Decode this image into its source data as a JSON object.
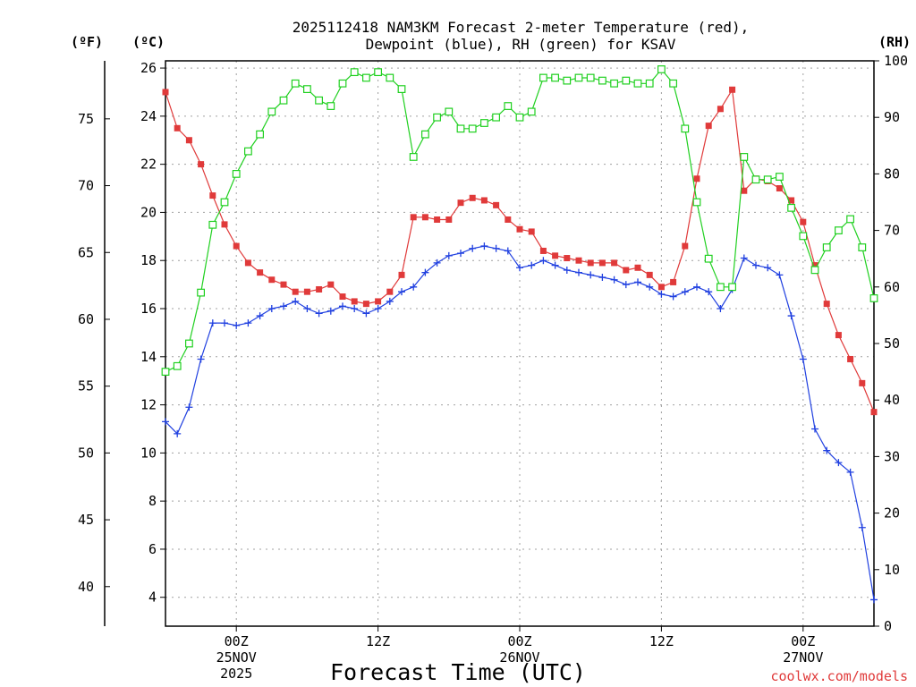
{
  "chart_data": {
    "type": "line",
    "title_lines": [
      "2025112418 NAM3KM Forecast 2-meter Temperature (red),",
      "Dewpoint (blue), RH (green) for KSAV"
    ],
    "xlabel": "Forecast Time (UTC)",
    "credit": "coolwx.com/models",
    "units": {
      "fahrenheit": "(ºF)",
      "celsius": "(ºC)",
      "rh": "(RH)"
    },
    "colors": {
      "temperature": "#e03a3a",
      "dewpoint": "#2040e0",
      "rh": "#20d020",
      "grid": "#a0a0a0"
    },
    "x_hours_range": [
      18,
      78
    ],
    "x_ticks": [
      {
        "hour": 24,
        "label": "00Z",
        "date": "25NOV",
        "year": "2025"
      },
      {
        "hour": 36,
        "label": "12Z",
        "date": "",
        "year": ""
      },
      {
        "hour": 48,
        "label": "00Z",
        "date": "26NOV",
        "year": ""
      },
      {
        "hour": 60,
        "label": "12Z",
        "date": "",
        "year": ""
      },
      {
        "hour": 72,
        "label": "00Z",
        "date": "27NOV",
        "year": ""
      }
    ],
    "y_celsius": {
      "range": [
        2.8,
        26.3
      ],
      "ticks": [
        4,
        6,
        8,
        10,
        12,
        14,
        16,
        18,
        20,
        22,
        24,
        26
      ]
    },
    "y_fahrenheit": {
      "ticks": [
        40,
        45,
        50,
        55,
        60,
        65,
        70,
        75
      ]
    },
    "y_rh": {
      "range": [
        0,
        100
      ],
      "ticks": [
        0,
        10,
        20,
        30,
        40,
        50,
        60,
        70,
        80,
        90,
        100
      ]
    },
    "hours": [
      18,
      19,
      20,
      21,
      22,
      23,
      24,
      25,
      26,
      27,
      28,
      29,
      30,
      31,
      32,
      33,
      34,
      35,
      36,
      37,
      38,
      39,
      40,
      41,
      42,
      43,
      44,
      45,
      46,
      47,
      48,
      49,
      50,
      51,
      52,
      53,
      54,
      55,
      56,
      57,
      58,
      59,
      60,
      61,
      62,
      63,
      64,
      65,
      66,
      67,
      68,
      69,
      70,
      71,
      72,
      73,
      74,
      75,
      76,
      77,
      78
    ],
    "series": [
      {
        "name": "Temperature (C)",
        "color": "temperature",
        "marker": "filled-square",
        "values": [
          25.0,
          23.5,
          23.0,
          22.0,
          20.7,
          19.5,
          18.6,
          17.9,
          17.5,
          17.2,
          17.0,
          16.7,
          16.7,
          16.8,
          17.0,
          16.5,
          16.3,
          16.2,
          16.3,
          16.7,
          17.4,
          19.8,
          19.8,
          19.7,
          19.7,
          20.4,
          20.6,
          20.5,
          20.3,
          19.7,
          19.3,
          19.2,
          18.4,
          18.2,
          18.1,
          18.0,
          17.9,
          17.9,
          17.9,
          17.6,
          17.7,
          17.4,
          16.9,
          17.1,
          18.6,
          21.4,
          23.6,
          24.3,
          25.1,
          20.9,
          21.4,
          21.3,
          21.0,
          20.5,
          19.6,
          17.8,
          16.2,
          14.9,
          13.9,
          12.9,
          11.7
        ]
      },
      {
        "name": "Dewpoint (C)",
        "color": "dewpoint",
        "marker": "plus",
        "values": [
          11.3,
          10.8,
          11.9,
          13.9,
          15.4,
          15.4,
          15.3,
          15.4,
          15.7,
          16.0,
          16.1,
          16.3,
          16.0,
          15.8,
          15.9,
          16.1,
          16.0,
          15.8,
          16.0,
          16.3,
          16.7,
          16.9,
          17.5,
          17.9,
          18.2,
          18.3,
          18.5,
          18.6,
          18.5,
          18.4,
          17.7,
          17.8,
          18.0,
          17.8,
          17.6,
          17.5,
          17.4,
          17.3,
          17.2,
          17.0,
          17.1,
          16.9,
          16.6,
          16.5,
          16.7,
          16.9,
          16.7,
          16.0,
          16.8,
          18.1,
          17.8,
          17.7,
          17.4,
          15.7,
          13.9,
          11.0,
          10.1,
          9.6,
          9.2,
          6.9,
          3.9
        ]
      },
      {
        "name": "RH (%)",
        "color": "rh",
        "marker": "open-square",
        "values": [
          45,
          46,
          50,
          59,
          71,
          75,
          80,
          84,
          87,
          91,
          93,
          96,
          95,
          93,
          92,
          96,
          98,
          97,
          98,
          97,
          95,
          83,
          87,
          90,
          91,
          88,
          88,
          89,
          90,
          92,
          90,
          91,
          97,
          97,
          96.5,
          97,
          97,
          96.5,
          96,
          96.5,
          96,
          96,
          98.5,
          96,
          88,
          75,
          65,
          60,
          60,
          83,
          79,
          79,
          79.5,
          74,
          69,
          63,
          67,
          70,
          72,
          67,
          58
        ]
      }
    ]
  }
}
